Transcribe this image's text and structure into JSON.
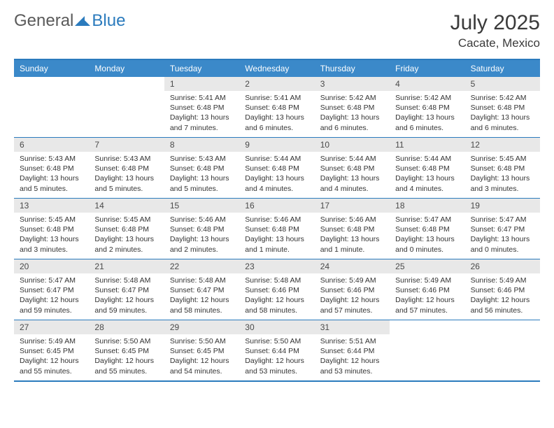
{
  "logo": {
    "part1": "General",
    "part2": "Blue"
  },
  "title": "July 2025",
  "location": "Cacate, Mexico",
  "colors": {
    "header_bg": "#3b89c9",
    "border": "#2b7bbd",
    "daynum_bg": "#e8e8e8",
    "text": "#333333",
    "title_text": "#3a3a3a"
  },
  "day_names": [
    "Sunday",
    "Monday",
    "Tuesday",
    "Wednesday",
    "Thursday",
    "Friday",
    "Saturday"
  ],
  "weeks": [
    [
      null,
      null,
      {
        "n": "1",
        "sr": "5:41 AM",
        "ss": "6:48 PM",
        "dl": "13 hours and 7 minutes."
      },
      {
        "n": "2",
        "sr": "5:41 AM",
        "ss": "6:48 PM",
        "dl": "13 hours and 6 minutes."
      },
      {
        "n": "3",
        "sr": "5:42 AM",
        "ss": "6:48 PM",
        "dl": "13 hours and 6 minutes."
      },
      {
        "n": "4",
        "sr": "5:42 AM",
        "ss": "6:48 PM",
        "dl": "13 hours and 6 minutes."
      },
      {
        "n": "5",
        "sr": "5:42 AM",
        "ss": "6:48 PM",
        "dl": "13 hours and 6 minutes."
      }
    ],
    [
      {
        "n": "6",
        "sr": "5:43 AM",
        "ss": "6:48 PM",
        "dl": "13 hours and 5 minutes."
      },
      {
        "n": "7",
        "sr": "5:43 AM",
        "ss": "6:48 PM",
        "dl": "13 hours and 5 minutes."
      },
      {
        "n": "8",
        "sr": "5:43 AM",
        "ss": "6:48 PM",
        "dl": "13 hours and 5 minutes."
      },
      {
        "n": "9",
        "sr": "5:44 AM",
        "ss": "6:48 PM",
        "dl": "13 hours and 4 minutes."
      },
      {
        "n": "10",
        "sr": "5:44 AM",
        "ss": "6:48 PM",
        "dl": "13 hours and 4 minutes."
      },
      {
        "n": "11",
        "sr": "5:44 AM",
        "ss": "6:48 PM",
        "dl": "13 hours and 4 minutes."
      },
      {
        "n": "12",
        "sr": "5:45 AM",
        "ss": "6:48 PM",
        "dl": "13 hours and 3 minutes."
      }
    ],
    [
      {
        "n": "13",
        "sr": "5:45 AM",
        "ss": "6:48 PM",
        "dl": "13 hours and 3 minutes."
      },
      {
        "n": "14",
        "sr": "5:45 AM",
        "ss": "6:48 PM",
        "dl": "13 hours and 2 minutes."
      },
      {
        "n": "15",
        "sr": "5:46 AM",
        "ss": "6:48 PM",
        "dl": "13 hours and 2 minutes."
      },
      {
        "n": "16",
        "sr": "5:46 AM",
        "ss": "6:48 PM",
        "dl": "13 hours and 1 minute."
      },
      {
        "n": "17",
        "sr": "5:46 AM",
        "ss": "6:48 PM",
        "dl": "13 hours and 1 minute."
      },
      {
        "n": "18",
        "sr": "5:47 AM",
        "ss": "6:48 PM",
        "dl": "13 hours and 0 minutes."
      },
      {
        "n": "19",
        "sr": "5:47 AM",
        "ss": "6:47 PM",
        "dl": "13 hours and 0 minutes."
      }
    ],
    [
      {
        "n": "20",
        "sr": "5:47 AM",
        "ss": "6:47 PM",
        "dl": "12 hours and 59 minutes."
      },
      {
        "n": "21",
        "sr": "5:48 AM",
        "ss": "6:47 PM",
        "dl": "12 hours and 59 minutes."
      },
      {
        "n": "22",
        "sr": "5:48 AM",
        "ss": "6:47 PM",
        "dl": "12 hours and 58 minutes."
      },
      {
        "n": "23",
        "sr": "5:48 AM",
        "ss": "6:46 PM",
        "dl": "12 hours and 58 minutes."
      },
      {
        "n": "24",
        "sr": "5:49 AM",
        "ss": "6:46 PM",
        "dl": "12 hours and 57 minutes."
      },
      {
        "n": "25",
        "sr": "5:49 AM",
        "ss": "6:46 PM",
        "dl": "12 hours and 57 minutes."
      },
      {
        "n": "26",
        "sr": "5:49 AM",
        "ss": "6:46 PM",
        "dl": "12 hours and 56 minutes."
      }
    ],
    [
      {
        "n": "27",
        "sr": "5:49 AM",
        "ss": "6:45 PM",
        "dl": "12 hours and 55 minutes."
      },
      {
        "n": "28",
        "sr": "5:50 AM",
        "ss": "6:45 PM",
        "dl": "12 hours and 55 minutes."
      },
      {
        "n": "29",
        "sr": "5:50 AM",
        "ss": "6:45 PM",
        "dl": "12 hours and 54 minutes."
      },
      {
        "n": "30",
        "sr": "5:50 AM",
        "ss": "6:44 PM",
        "dl": "12 hours and 53 minutes."
      },
      {
        "n": "31",
        "sr": "5:51 AM",
        "ss": "6:44 PM",
        "dl": "12 hours and 53 minutes."
      },
      null,
      null
    ]
  ],
  "labels": {
    "sunrise": "Sunrise:",
    "sunset": "Sunset:",
    "daylight": "Daylight:"
  }
}
